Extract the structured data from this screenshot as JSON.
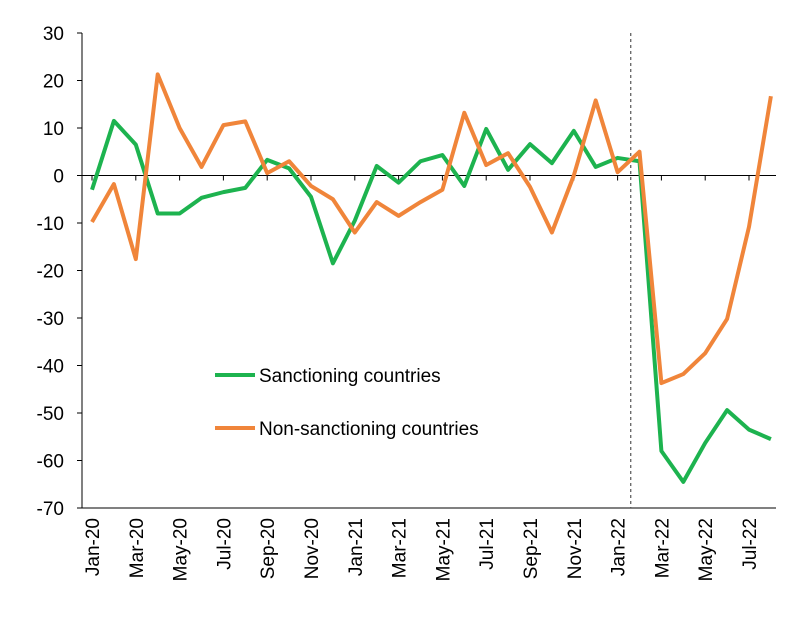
{
  "chart_data": {
    "type": "line",
    "categories": [
      "Jan-20",
      null,
      "Mar-20",
      null,
      "May-20",
      null,
      "Jul-20",
      null,
      "Sep-20",
      null,
      "Nov-20",
      null,
      "Jan-21",
      null,
      "Mar-21",
      null,
      "May-21",
      null,
      "Jul-21",
      null,
      "Sep-21",
      null,
      "Nov-21",
      null,
      "Jan-22",
      null,
      "Mar-22",
      null,
      "May-22",
      null,
      "Jul-22",
      null
    ],
    "series": [
      {
        "name": "Sanctioning countries",
        "color": "#1db34f",
        "values": [
          -3,
          11.5,
          6.5,
          -8,
          -8,
          -4.7,
          -3.5,
          -2.6,
          3.3,
          1.5,
          -4.5,
          -18.5,
          -9.5,
          2,
          -1.5,
          3,
          4.3,
          -2.2,
          9.8,
          1.2,
          6.6,
          2.6,
          9.4,
          1.8,
          3.7,
          3,
          -58,
          -64.5,
          -56.3,
          -49.4,
          -53.5,
          -55.5
        ]
      },
      {
        "name": "Non-sanctioning countries",
        "color": "#f0853a",
        "values": [
          -9.8,
          -1.8,
          -17.6,
          21.3,
          10,
          1.8,
          10.6,
          11.4,
          0.5,
          3,
          -2.2,
          -5,
          -12,
          -5.6,
          -8.5,
          -5.6,
          -3,
          13.2,
          2.2,
          4.7,
          -2.4,
          -12,
          0,
          15.8,
          0.7,
          5,
          -43.7,
          -41.8,
          -37.4,
          -30.2,
          -10.8,
          16.7
        ]
      }
    ],
    "ylim": [
      -70,
      30
    ],
    "yticks": [
      -70,
      -60,
      -50,
      -40,
      -30,
      -20,
      -10,
      0,
      10,
      20,
      30
    ]
  }
}
